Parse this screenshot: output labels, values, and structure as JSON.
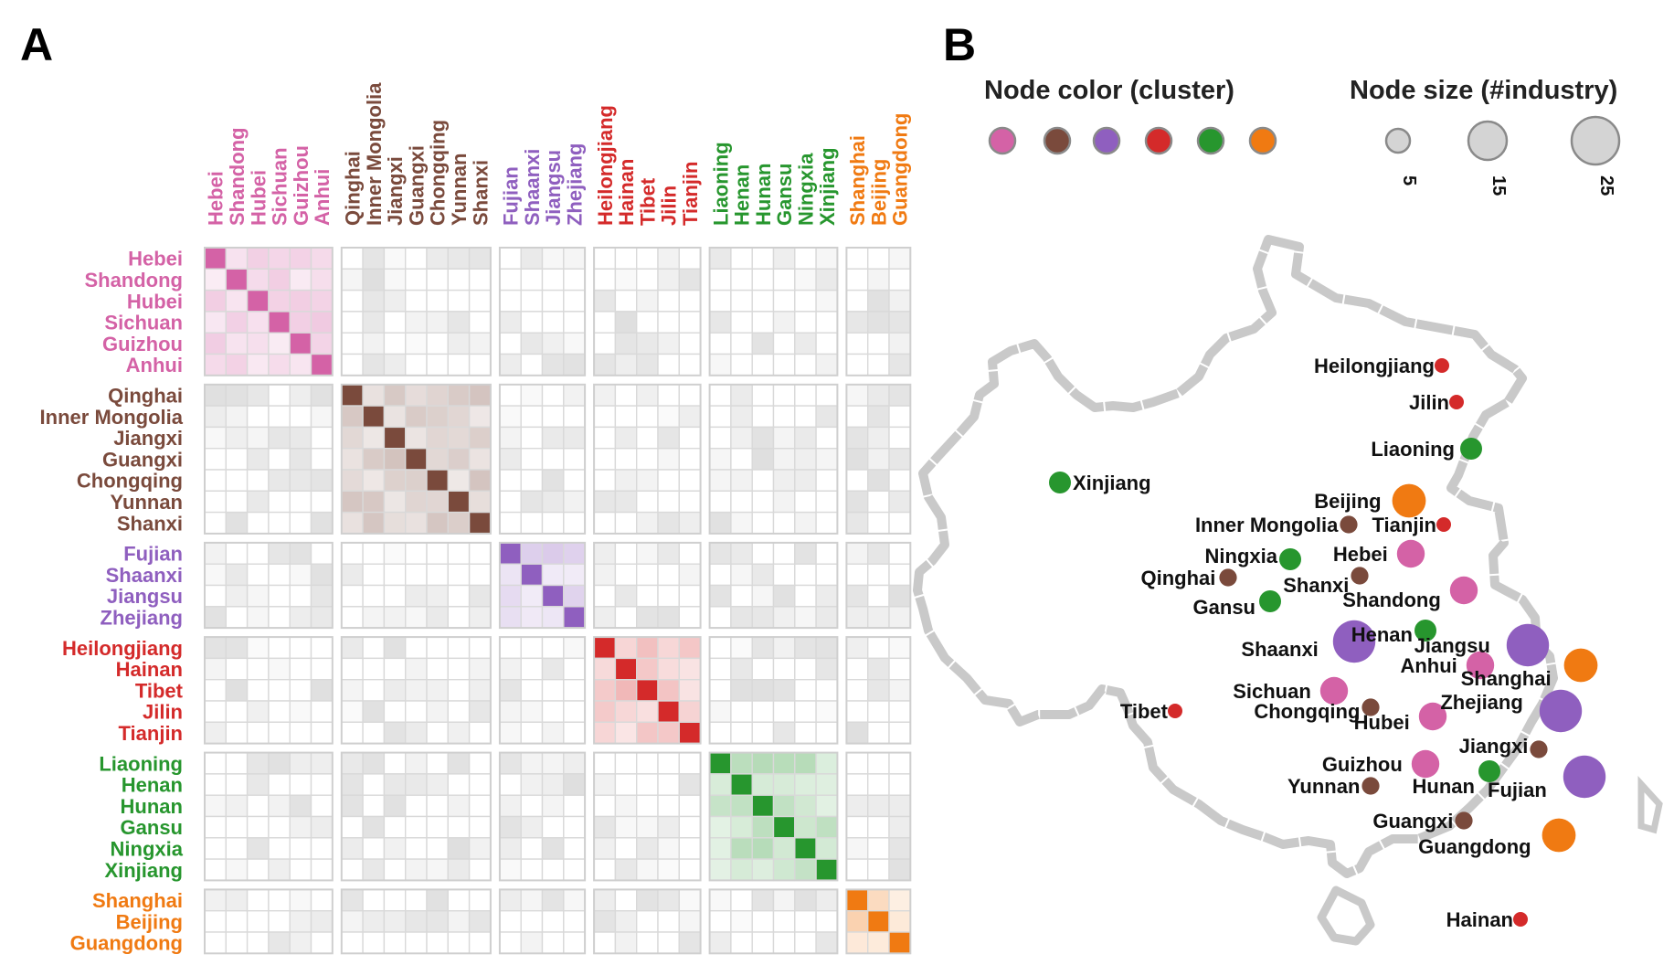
{
  "panel_labels": {
    "a": "A",
    "b": "B"
  },
  "legend": {
    "color_title": "Node color (cluster)",
    "size_title": "Node size (#industry)",
    "size_values": [
      "5",
      "15",
      "25"
    ]
  },
  "chart_data": [
    {
      "type": "heatmap",
      "panel": "A",
      "clusters": [
        {
          "color": "#d462a6",
          "provinces": [
            "Hebei",
            "Shandong",
            "Hubei",
            "Sichuan",
            "Guizhou",
            "Anhui"
          ]
        },
        {
          "color": "#7a4a3c",
          "provinces": [
            "Qinghai",
            "Inner Mongolia",
            "Jiangxi",
            "Guangxi",
            "Chongqing",
            "Yunnan",
            "Shanxi"
          ]
        },
        {
          "color": "#8f5fbf",
          "provinces": [
            "Fujian",
            "Shaanxi",
            "Jiangsu",
            "Zhejiang"
          ]
        },
        {
          "color": "#d42a2a",
          "provinces": [
            "Heilongjiang",
            "Hainan",
            "Tibet",
            "Jilin",
            "Tianjin"
          ]
        },
        {
          "color": "#27962e",
          "provinces": [
            "Liaoning",
            "Henan",
            "Hunan",
            "Gansu",
            "Ningxia",
            "Xinjiang"
          ]
        },
        {
          "color": "#f07a12",
          "provinces": [
            "Shanghai",
            "Beijing",
            "Guangdong"
          ]
        }
      ]
    },
    {
      "type": "scatter",
      "panel": "B",
      "size_levels": [
        5,
        15,
        25
      ],
      "nodes": [
        {
          "name": "Heilongjiang",
          "cluster": 3,
          "size": 5
        },
        {
          "name": "Jilin",
          "cluster": 3,
          "size": 5
        },
        {
          "name": "Liaoning",
          "cluster": 4,
          "size": 10
        },
        {
          "name": "Xinjiang",
          "cluster": 4,
          "size": 10
        },
        {
          "name": "Beijing",
          "cluster": 5,
          "size": 18
        },
        {
          "name": "Inner Mongolia",
          "cluster": 1,
          "size": 7
        },
        {
          "name": "Tianjin",
          "cluster": 3,
          "size": 5
        },
        {
          "name": "Ningxia",
          "cluster": 4,
          "size": 10
        },
        {
          "name": "Hebei",
          "cluster": 0,
          "size": 14
        },
        {
          "name": "Qinghai",
          "cluster": 1,
          "size": 7
        },
        {
          "name": "Shanxi",
          "cluster": 1,
          "size": 7
        },
        {
          "name": "Shandong",
          "cluster": 0,
          "size": 14
        },
        {
          "name": "Gansu",
          "cluster": 4,
          "size": 10
        },
        {
          "name": "Henan",
          "cluster": 4,
          "size": 10
        },
        {
          "name": "Shaanxi",
          "cluster": 2,
          "size": 24
        },
        {
          "name": "Jiangsu",
          "cluster": 2,
          "size": 24
        },
        {
          "name": "Anhui",
          "cluster": 0,
          "size": 14
        },
        {
          "name": "Shanghai",
          "cluster": 5,
          "size": 18
        },
        {
          "name": "Sichuan",
          "cluster": 0,
          "size": 14
        },
        {
          "name": "Chongqing",
          "cluster": 1,
          "size": 7
        },
        {
          "name": "Hubei",
          "cluster": 0,
          "size": 14
        },
        {
          "name": "Zhejiang",
          "cluster": 2,
          "size": 24
        },
        {
          "name": "Tibet",
          "cluster": 3,
          "size": 5
        },
        {
          "name": "Jiangxi",
          "cluster": 1,
          "size": 7
        },
        {
          "name": "Guizhou",
          "cluster": 0,
          "size": 14
        },
        {
          "name": "Hunan",
          "cluster": 4,
          "size": 10
        },
        {
          "name": "Fujian",
          "cluster": 2,
          "size": 24
        },
        {
          "name": "Yunnan",
          "cluster": 1,
          "size": 7
        },
        {
          "name": "Guangxi",
          "cluster": 1,
          "size": 7
        },
        {
          "name": "Guangdong",
          "cluster": 5,
          "size": 18
        },
        {
          "name": "Hainan",
          "cluster": 3,
          "size": 5
        }
      ]
    }
  ]
}
